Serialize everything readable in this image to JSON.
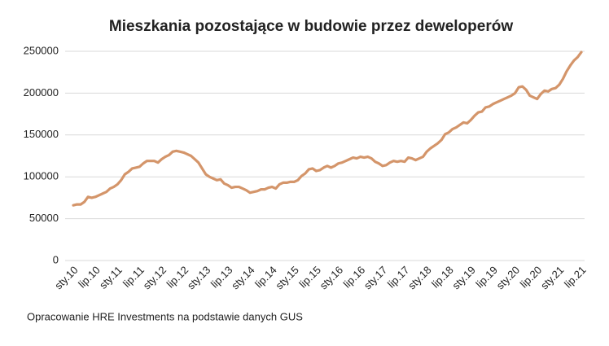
{
  "chart_data": {
    "type": "line",
    "title": "Mieszkania pozostające w budowie przez deweloperów",
    "source": "Opracowanie HRE Investments na podstawie danych GUS",
    "color": "#d4956a",
    "ylim": [
      0,
      250000
    ],
    "yticks": [
      0,
      50000,
      100000,
      150000,
      200000,
      250000
    ],
    "grid": true,
    "categories": [
      "sty.10",
      null,
      null,
      null,
      null,
      null,
      "lip.10",
      null,
      null,
      null,
      null,
      null,
      "sty.11",
      null,
      null,
      null,
      null,
      null,
      "lip.11",
      null,
      null,
      null,
      null,
      null,
      "sty.12",
      null,
      null,
      null,
      null,
      null,
      "lip.12",
      null,
      null,
      null,
      null,
      null,
      "sty.13",
      null,
      null,
      null,
      null,
      null,
      "lip.13",
      null,
      null,
      null,
      null,
      null,
      "sty.14",
      null,
      null,
      null,
      null,
      null,
      "lip.14",
      null,
      null,
      null,
      null,
      null,
      "sty.15",
      null,
      null,
      null,
      null,
      null,
      "lip.15",
      null,
      null,
      null,
      null,
      null,
      "sty.16",
      null,
      null,
      null,
      null,
      null,
      "lip.16",
      null,
      null,
      null,
      null,
      null,
      "sty.17",
      null,
      null,
      null,
      null,
      null,
      "lip.17",
      null,
      null,
      null,
      null,
      null,
      "sty.18",
      null,
      null,
      null,
      null,
      null,
      "lip.18",
      null,
      null,
      null,
      null,
      null,
      "sty.19",
      null,
      null,
      null,
      null,
      null,
      "lip.19",
      null,
      null,
      null,
      null,
      null,
      "sty.20",
      null,
      null,
      null,
      null,
      null,
      "lip.20",
      null,
      null,
      null,
      null,
      null,
      "sty.21",
      null,
      null,
      null,
      null,
      null,
      "lip.21"
    ],
    "values": [
      66000,
      67000,
      67000,
      70000,
      76000,
      75000,
      76000,
      78000,
      80000,
      82000,
      86000,
      88000,
      91000,
      96000,
      103000,
      106000,
      110000,
      111000,
      112000,
      116000,
      119000,
      119000,
      119000,
      117000,
      121000,
      124000,
      126000,
      130000,
      131000,
      130000,
      129000,
      127000,
      125000,
      121000,
      117000,
      110000,
      103000,
      100000,
      98000,
      96000,
      97000,
      92000,
      90000,
      87000,
      88000,
      88000,
      86000,
      84000,
      81000,
      82000,
      83000,
      85000,
      85000,
      87000,
      88000,
      86000,
      91000,
      93000,
      93000,
      94000,
      94000,
      96000,
      101000,
      104000,
      109000,
      110000,
      107000,
      108000,
      111000,
      113000,
      111000,
      113000,
      116000,
      117000,
      119000,
      121000,
      123000,
      122000,
      124000,
      123000,
      124000,
      122000,
      118000,
      116000,
      113000,
      114000,
      117000,
      119000,
      118000,
      119000,
      118000,
      123000,
      122000,
      120000,
      122000,
      124000,
      130000,
      134000,
      137000,
      140000,
      144000,
      151000,
      153000,
      157000,
      159000,
      162000,
      165000,
      164000,
      168000,
      173000,
      177000,
      178000,
      183000,
      184000,
      187000,
      189000,
      191000,
      193000,
      195000,
      197000,
      200000,
      207000,
      208000,
      204000,
      197000,
      195000,
      193000,
      199000,
      203000,
      202000,
      205000,
      206000,
      210000,
      217000,
      226000,
      233000,
      239000,
      243000,
      249000
    ]
  }
}
